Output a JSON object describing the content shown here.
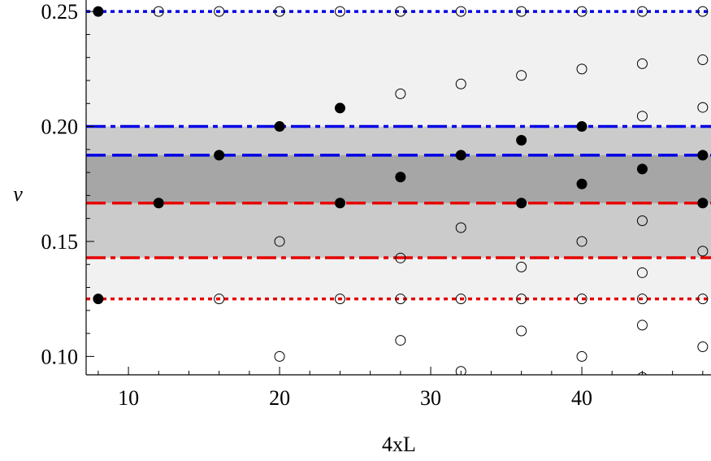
{
  "chart_data": {
    "type": "scatter",
    "title": "",
    "xlabel": "4xL",
    "ylabel": "ν",
    "xlim": [
      7.2,
      48.6
    ],
    "ylim": [
      0.092,
      0.255
    ],
    "xticks": [
      10,
      20,
      30,
      40
    ],
    "xtick_labels": [
      "10",
      "20",
      "30",
      "40"
    ],
    "yticks": [
      0.1,
      0.15,
      0.2,
      0.25
    ],
    "ytick_labels": [
      "0.10",
      "0.15",
      "0.20",
      "0.25"
    ],
    "grid": false,
    "bands": [
      {
        "from": 0.125,
        "to": 0.25,
        "color": "#f1f1f1"
      },
      {
        "from": 0.1429,
        "to": 0.2,
        "color": "#cbcbcb"
      },
      {
        "from": 0.1667,
        "to": 0.1875,
        "color": "#a6a6a6"
      }
    ],
    "reference_lines": [
      {
        "y": 0.25,
        "style": "dotted",
        "color": "#0000e6"
      },
      {
        "y": 0.2,
        "style": "dashdot",
        "color": "#0000e6"
      },
      {
        "y": 0.1875,
        "style": "dashed",
        "color": "#0000e6"
      },
      {
        "y": 0.1667,
        "style": "dashed",
        "color": "#e60000"
      },
      {
        "y": 0.1429,
        "style": "dashdot",
        "color": "#e60000"
      },
      {
        "y": 0.125,
        "style": "dotted",
        "color": "#e60000"
      }
    ],
    "series": [
      {
        "marker": "filled-circle",
        "color": "#000000",
        "points": [
          [
            8,
            0.25
          ],
          [
            8,
            0.125
          ],
          [
            12,
            0.1667
          ],
          [
            16,
            0.1875
          ],
          [
            20,
            0.2
          ],
          [
            24,
            0.208
          ],
          [
            24,
            0.1667
          ],
          [
            28,
            0.178
          ],
          [
            32,
            0.1875
          ],
          [
            36,
            0.194
          ],
          [
            36,
            0.1667
          ],
          [
            40,
            0.2
          ],
          [
            40,
            0.175
          ],
          [
            44,
            0.1815
          ],
          [
            48,
            0.1875
          ],
          [
            48,
            0.1667
          ]
        ]
      },
      {
        "marker": "open-circle",
        "color": "#000000",
        "points": [
          [
            12,
            0.25
          ],
          [
            16,
            0.25
          ],
          [
            20,
            0.25
          ],
          [
            24,
            0.25
          ],
          [
            28,
            0.25
          ],
          [
            32,
            0.25
          ],
          [
            36,
            0.25
          ],
          [
            40,
            0.25
          ],
          [
            44,
            0.25
          ],
          [
            48,
            0.25
          ],
          [
            16,
            0.125
          ],
          [
            24,
            0.125
          ],
          [
            28,
            0.125
          ],
          [
            32,
            0.125
          ],
          [
            36,
            0.125
          ],
          [
            40,
            0.125
          ],
          [
            44,
            0.125
          ],
          [
            48,
            0.125
          ],
          [
            20,
            0.15
          ],
          [
            20,
            0.1
          ],
          [
            28,
            0.2142
          ],
          [
            28,
            0.1428
          ],
          [
            28,
            0.107
          ],
          [
            32,
            0.2185
          ],
          [
            32,
            0.156
          ],
          [
            32,
            0.0935
          ],
          [
            36,
            0.2222
          ],
          [
            36,
            0.1389
          ],
          [
            36,
            0.1111
          ],
          [
            40,
            0.225
          ],
          [
            40,
            0.15
          ],
          [
            40,
            0.1
          ],
          [
            44,
            0.2273
          ],
          [
            44,
            0.2045
          ],
          [
            44,
            0.159
          ],
          [
            44,
            0.1364
          ],
          [
            44,
            0.1136
          ],
          [
            44,
            0.0909
          ],
          [
            48,
            0.229
          ],
          [
            48,
            0.2083
          ],
          [
            48,
            0.1458
          ],
          [
            48,
            0.1042
          ]
        ]
      }
    ]
  }
}
